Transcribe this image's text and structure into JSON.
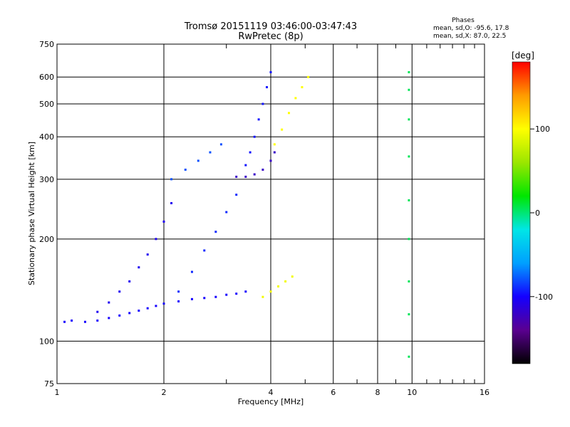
{
  "chart_data": {
    "type": "scatter",
    "title": "Tromsø 20151119 03:46:00-03:47:43",
    "subtitle": "RwPretec (8p)",
    "xlabel": "Frequency [MHz]",
    "ylabel": "Stationary phase Virtual Height [km]",
    "x_scale": "log",
    "y_scale": "log",
    "xlim": [
      1,
      16
    ],
    "ylim": [
      75,
      750
    ],
    "x_ticks": [
      1,
      2,
      4,
      6,
      8,
      10,
      16
    ],
    "x_tick_labels": [
      "1",
      "2",
      "4",
      "6",
      "8",
      "10",
      "16"
    ],
    "y_ticks": [
      75,
      100,
      200,
      300,
      400,
      500,
      600,
      750
    ],
    "y_tick_labels": [
      "75",
      "100",
      "200",
      "300",
      "400",
      "500",
      "600",
      "750"
    ],
    "grid": true,
    "minor_x_ticks": [
      3,
      5,
      7,
      9,
      11,
      12,
      13,
      14,
      15
    ],
    "colorbar": {
      "label": "[deg]",
      "range": [
        -180,
        180
      ],
      "ticks": [
        100,
        0,
        -100
      ],
      "tick_labels": [
        "100",
        "0",
        "-100"
      ],
      "colors": [
        "#000000",
        "#5a0090",
        "#1400ff",
        "#00a0ff",
        "#00e6e6",
        "#00e600",
        "#9be600",
        "#ffff00",
        "#ff9b00",
        "#ff0000"
      ]
    },
    "phases_box": {
      "heading": "Phases",
      "line_o": "mean, sd,O: -95.6, 17.8",
      "line_x": "mean, sd,X:  87.0, 22.5"
    },
    "traces": [
      {
        "name": "",
        "points": [
          [
            1.05,
            114
          ],
          [
            1.1,
            115
          ],
          [
            1.2,
            114
          ],
          [
            1.3,
            115
          ],
          [
            1.4,
            117
          ],
          [
            1.5,
            119
          ],
          [
            1.6,
            121
          ],
          [
            1.7,
            123
          ],
          [
            1.8,
            125
          ],
          [
            1.9,
            127
          ],
          [
            2.0,
            129
          ],
          [
            2.2,
            131
          ],
          [
            2.4,
            133
          ],
          [
            2.6,
            134
          ],
          [
            2.8,
            135
          ],
          [
            3.0,
            137
          ],
          [
            3.2,
            138
          ],
          [
            3.4,
            140
          ]
        ],
        "phase": -100
      },
      {
        "name": "",
        "points": [
          [
            1.3,
            122
          ],
          [
            1.4,
            130
          ],
          [
            1.5,
            140
          ],
          [
            1.6,
            150
          ],
          [
            1.7,
            165
          ],
          [
            1.8,
            180
          ],
          [
            1.9,
            200
          ],
          [
            2.0,
            225
          ],
          [
            2.1,
            255
          ]
        ],
        "phase": -105
      },
      {
        "name": "",
        "points": [
          [
            2.2,
            140
          ],
          [
            2.4,
            160
          ],
          [
            2.6,
            185
          ],
          [
            2.8,
            210
          ],
          [
            3.0,
            240
          ],
          [
            3.2,
            270
          ]
        ],
        "phase": -90
      },
      {
        "name": "",
        "points": [
          [
            2.1,
            300
          ],
          [
            2.3,
            320
          ],
          [
            2.5,
            340
          ],
          [
            2.7,
            360
          ],
          [
            2.9,
            380
          ]
        ],
        "phase": -80
      },
      {
        "name": "",
        "points": [
          [
            3.2,
            305
          ],
          [
            3.4,
            305
          ],
          [
            3.6,
            310
          ],
          [
            3.8,
            320
          ],
          [
            4.0,
            340
          ],
          [
            4.1,
            360
          ]
        ],
        "phase": -120
      },
      {
        "name": "",
        "points": [
          [
            3.4,
            330
          ],
          [
            3.5,
            360
          ],
          [
            3.6,
            400
          ],
          [
            3.7,
            450
          ],
          [
            3.8,
            500
          ],
          [
            3.9,
            560
          ],
          [
            4.0,
            620
          ]
        ],
        "phase": -95
      },
      {
        "name": "",
        "points": [
          [
            4.1,
            380
          ],
          [
            4.3,
            420
          ],
          [
            4.5,
            470
          ],
          [
            4.7,
            520
          ],
          [
            4.9,
            560
          ],
          [
            5.1,
            600
          ]
        ],
        "phase": 100
      },
      {
        "name": "",
        "points": [
          [
            3.8,
            135
          ],
          [
            4.0,
            140
          ],
          [
            4.2,
            145
          ],
          [
            4.4,
            150
          ],
          [
            4.6,
            155
          ]
        ],
        "phase": 95
      },
      {
        "name": "",
        "points": [
          [
            9.8,
            90
          ],
          [
            9.8,
            120
          ],
          [
            9.8,
            150
          ],
          [
            9.8,
            200
          ],
          [
            9.8,
            260
          ],
          [
            9.8,
            350
          ],
          [
            9.8,
            450
          ],
          [
            9.8,
            550
          ],
          [
            9.8,
            620
          ]
        ],
        "phase": 5
      }
    ]
  }
}
